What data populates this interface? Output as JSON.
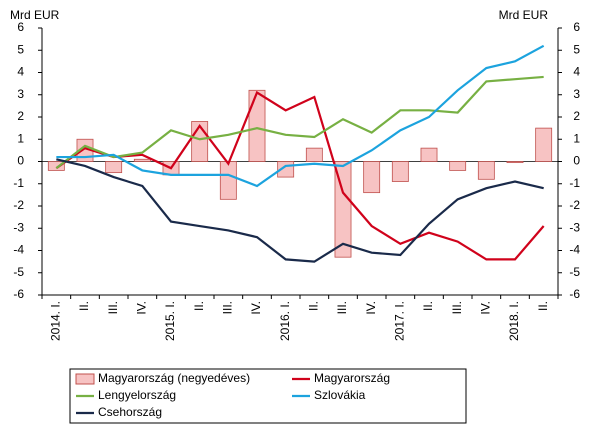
{
  "chart_data": {
    "type": "combo",
    "y_label": "Mrd EUR",
    "y2_label": "Mrd EUR",
    "categories": [
      "2014. I.",
      "II.",
      "III.",
      "IV.",
      "2015. I.",
      "II.",
      "III.",
      "IV.",
      "2016. I.",
      "II.",
      "III.",
      "IV.",
      "2017. I.",
      "II.",
      "III.",
      "IV.",
      "2018. I.",
      "II."
    ],
    "ylim": [
      -6,
      6
    ],
    "yticks": [
      -6,
      -5,
      -4,
      -3,
      -2,
      -1,
      0,
      1,
      2,
      3,
      4,
      5,
      6
    ],
    "y2lim": [
      -6,
      6
    ],
    "y2ticks": [
      -6,
      -5,
      -4,
      -3,
      -2,
      -1,
      0,
      1,
      2,
      3,
      4,
      5,
      6
    ],
    "series": [
      {
        "name": "Magyarország (negyedéves)",
        "type": "bar",
        "color": "#f7c3c3",
        "values": [
          -0.4,
          1.0,
          -0.5,
          0.1,
          -0.6,
          1.8,
          -1.7,
          3.2,
          -0.7,
          0.6,
          -4.3,
          -1.4,
          -0.9,
          0.6,
          -0.4,
          -0.8,
          -0.05,
          1.5
        ]
      },
      {
        "name": "Magyarország",
        "type": "line",
        "color": "#d0021b",
        "values": [
          -0.3,
          0.6,
          0.2,
          0.3,
          -0.3,
          1.6,
          -0.1,
          3.1,
          2.3,
          2.9,
          -1.4,
          -2.9,
          -3.7,
          -3.2,
          -3.6,
          -4.4,
          -4.4,
          -2.9
        ]
      },
      {
        "name": "Lengyelország",
        "type": "line",
        "color": "#77b043",
        "values": [
          -0.3,
          0.7,
          0.2,
          0.4,
          1.4,
          1.0,
          1.2,
          1.5,
          1.2,
          1.1,
          1.9,
          1.3,
          2.3,
          2.3,
          2.2,
          3.6,
          3.7,
          3.8
        ]
      },
      {
        "name": "Szlovákia",
        "type": "line",
        "color": "#1ca3de",
        "values": [
          0.2,
          0.2,
          0.3,
          -0.4,
          -0.6,
          -0.6,
          -0.6,
          -1.1,
          -0.2,
          -0.1,
          -0.2,
          0.5,
          1.4,
          2.0,
          3.2,
          4.2,
          4.5,
          5.2
        ]
      },
      {
        "name": "Csehország",
        "type": "line",
        "color": "#1a2a4a",
        "values": [
          0.1,
          -0.2,
          -0.7,
          -1.1,
          -2.7,
          -2.9,
          -3.1,
          -3.4,
          -4.4,
          -4.5,
          -3.7,
          -4.1,
          -4.2,
          -2.8,
          -1.7,
          -1.2,
          -0.9,
          -1.2
        ]
      }
    ]
  }
}
